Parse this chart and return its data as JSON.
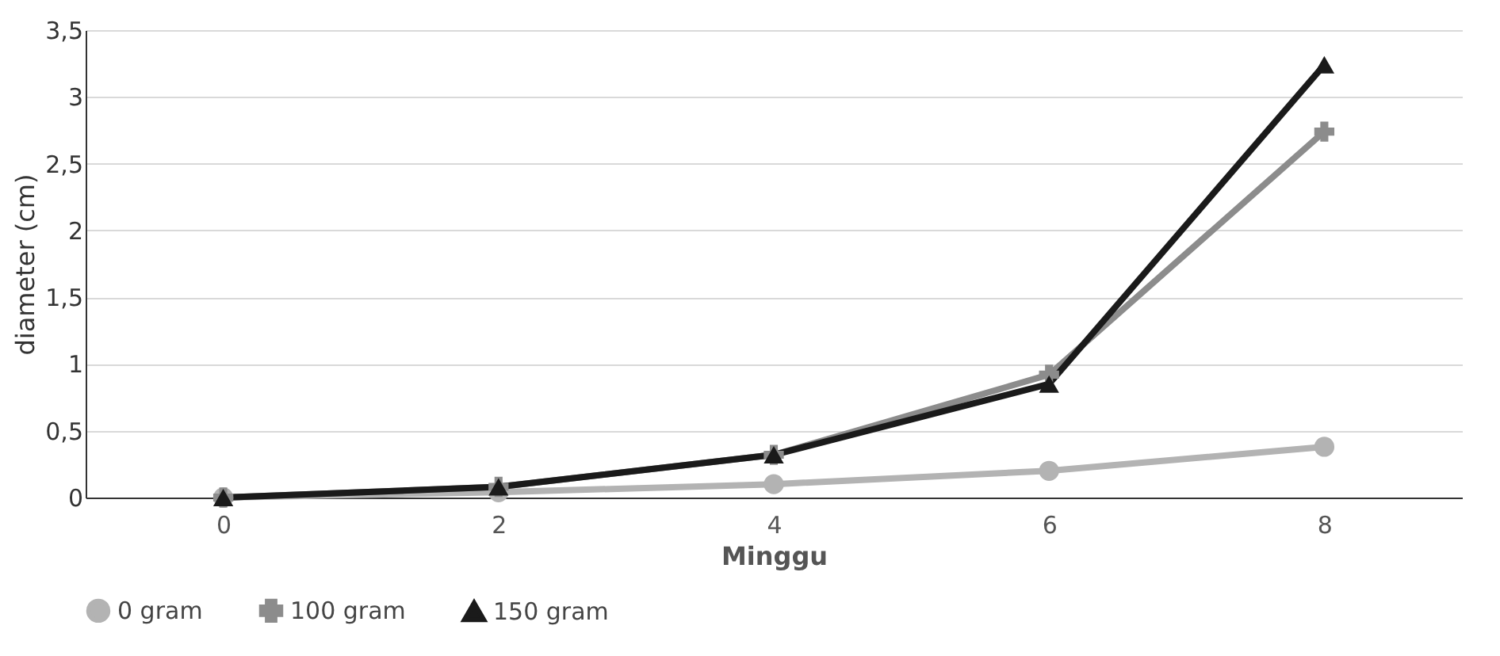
{
  "chart_data": {
    "type": "line",
    "xlabel": "Minggu",
    "ylabel": "diameter (cm)",
    "categories": [
      "0",
      "2",
      "4",
      "6",
      "8"
    ],
    "series": [
      {
        "name": "0 gram",
        "color": "#b3b3b3",
        "marker": "circle",
        "values": [
          0,
          0.04,
          0.1,
          0.2,
          0.38
        ]
      },
      {
        "name": "100 gram",
        "color": "#8c8c8c",
        "marker": "cross",
        "values": [
          0,
          0.08,
          0.32,
          0.92,
          2.74
        ]
      },
      {
        "name": "150 gram",
        "color": "#1a1a1a",
        "marker": "triangle",
        "values": [
          0,
          0.08,
          0.32,
          0.85,
          3.24
        ]
      }
    ],
    "ylim": [
      0,
      3.5
    ],
    "yticks": [
      0,
      {
        "value": 0.5,
        "label": "0,5"
      },
      1,
      {
        "value": 1.5,
        "label": "1,5"
      },
      2,
      {
        "value": 2.5,
        "label": "2,5"
      },
      3,
      {
        "value": 3.5,
        "label": "3,5"
      }
    ],
    "grid": "y",
    "legend": "bottom",
    "line_style": "solid"
  }
}
